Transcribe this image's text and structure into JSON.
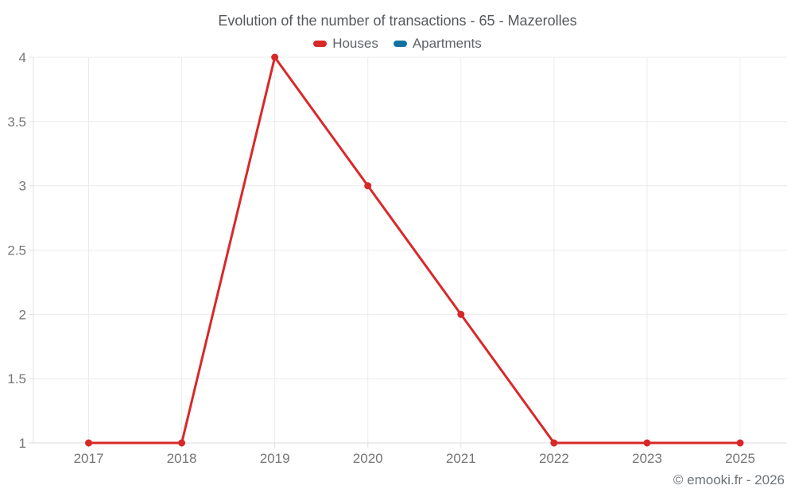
{
  "chart_data": {
    "type": "line",
    "title": "Evolution of the number of transactions - 65 - Mazerolles",
    "categories": [
      "2017",
      "2018",
      "2019",
      "2020",
      "2021",
      "2022",
      "2023",
      "2025"
    ],
    "series": [
      {
        "name": "Houses",
        "color": "#d92828",
        "values": [
          1,
          1,
          4,
          3,
          2,
          1,
          1,
          1
        ]
      },
      {
        "name": "Apartments",
        "color": "#1273a3",
        "values": []
      }
    ],
    "xlabel": "",
    "ylabel": "",
    "ylim": [
      1,
      4
    ],
    "yticks": [
      1,
      1.5,
      2,
      2.5,
      3,
      3.5,
      4
    ],
    "grid": true,
    "legend_position": "top",
    "marker": "circle",
    "colors": {
      "gridline": "#ececec",
      "axis": "#dcdcdc",
      "tick": "#e0e0e0",
      "tick_label": "#757575",
      "title_text": "#55585c",
      "legend_text": "#5f6368"
    }
  },
  "footer": {
    "text": "© emooki.fr - 2026"
  }
}
